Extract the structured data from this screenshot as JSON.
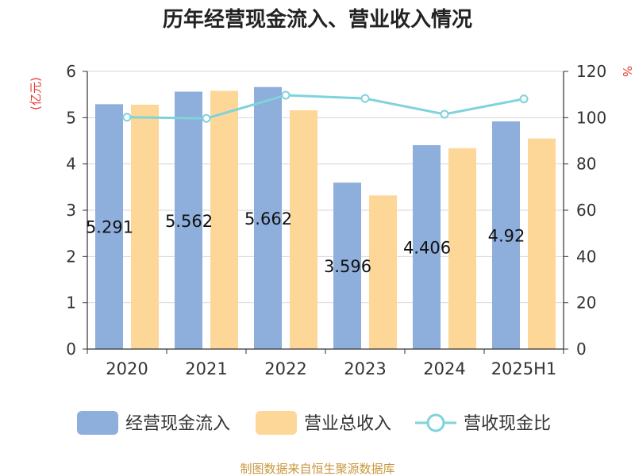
{
  "chart_data": {
    "type": "bar",
    "title": "历年经营现金流入、营业收入情况",
    "y_left_unit": "(亿元)",
    "y_right_unit": "%",
    "categories": [
      "2020",
      "2021",
      "2022",
      "2023",
      "2024",
      "2025H1"
    ],
    "ylim_left": [
      0,
      6
    ],
    "ylim_right": [
      0,
      120
    ],
    "yticks_left": [
      "0",
      "1",
      "2",
      "3",
      "4",
      "5",
      "6"
    ],
    "yticks_right": [
      "0",
      "20",
      "40",
      "60",
      "80",
      "100",
      "120"
    ],
    "grid": true,
    "legend_position": "bottom",
    "series": [
      {
        "name": "经营现金流入",
        "type": "bar",
        "axis": "left",
        "color": "#8eaedc",
        "values": [
          5.291,
          5.562,
          5.662,
          3.596,
          4.406,
          4.92
        ],
        "labels": [
          "5.291",
          "5.562",
          "5.662",
          "3.596",
          "4.406",
          "4.92"
        ]
      },
      {
        "name": "营业总收入",
        "type": "bar",
        "axis": "left",
        "color": "#fdd797",
        "values": [
          5.28,
          5.58,
          5.16,
          3.32,
          4.34,
          4.55
        ]
      },
      {
        "name": "营收现金比",
        "type": "line",
        "axis": "right",
        "color": "#7fd3da",
        "values": [
          100.2,
          99.7,
          109.7,
          108.3,
          101.5,
          108.1
        ]
      }
    ],
    "source": "制图数据来自恒生聚源数据库"
  }
}
